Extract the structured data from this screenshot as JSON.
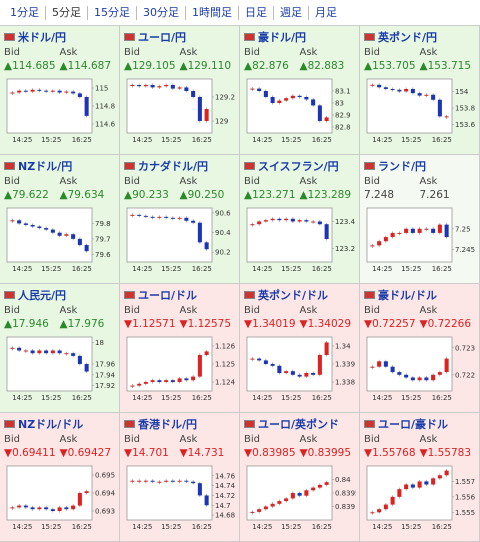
{
  "tabs": [
    "1分足",
    "5分足",
    "15分足",
    "30分足",
    "1時間足",
    "日足",
    "週足",
    "月足"
  ],
  "selected_tab": "5分足",
  "labels": {
    "bid": "Bid",
    "ask": "Ask"
  },
  "x_labels": [
    "14:25",
    "15:25",
    "16:25"
  ],
  "rates": [
    {
      "name": "米ドル/円",
      "bid": "▲114.685",
      "ask": "▲114.687",
      "chart": {
        "ylim": [
          114.5,
          115.1
        ],
        "yticks": [
          115,
          114.8,
          114.6
        ],
        "values": [
          114.95,
          114.97,
          114.96,
          114.98,
          114.97,
          114.96,
          114.97,
          114.95,
          114.96,
          114.94,
          114.9,
          114.69
        ]
      }
    },
    {
      "name": "ユーロ/円",
      "bid": "▲129.105",
      "ask": "▲129.110",
      "chart": {
        "ylim": [
          128.9,
          129.35
        ],
        "yticks": [
          129.2,
          129
        ],
        "values": [
          129.3,
          129.29,
          129.3,
          129.28,
          129.29,
          129.3,
          129.27,
          129.28,
          129.25,
          129.2,
          129.0,
          129.1
        ]
      }
    },
    {
      "name": "豪ドル/円",
      "bid": "▲82.876",
      "ask": "▲82.883",
      "chart": {
        "ylim": [
          82.75,
          83.2
        ],
        "yticks": [
          83.1,
          83,
          82.9,
          82.8
        ],
        "values": [
          83.12,
          83.1,
          83.05,
          83.0,
          83.02,
          83.04,
          83.06,
          83.05,
          83.03,
          82.98,
          82.85,
          82.88
        ]
      }
    },
    {
      "name": "英ポンド/円",
      "bid": "▲153.705",
      "ask": "▲153.715",
      "chart": {
        "ylim": [
          153.5,
          154.15
        ],
        "yticks": [
          154,
          153.8,
          153.6
        ],
        "values": [
          154.08,
          154.05,
          154.03,
          154.02,
          154.0,
          154.03,
          153.98,
          153.95,
          153.96,
          153.9,
          153.7,
          153.7
        ]
      }
    },
    {
      "name": "NZドル/円",
      "bid": "▲79.622",
      "ask": "▲79.634",
      "chart": {
        "ylim": [
          79.55,
          79.9
        ],
        "yticks": [
          79.8,
          79.7,
          79.6
        ],
        "values": [
          79.82,
          79.8,
          79.79,
          79.78,
          79.77,
          79.76,
          79.74,
          79.72,
          79.73,
          79.7,
          79.66,
          79.62
        ]
      }
    },
    {
      "name": "カナダドル/円",
      "bid": "▲90.233",
      "ask": "▲90.250",
      "chart": {
        "ylim": [
          90.1,
          90.65
        ],
        "yticks": [
          90.6,
          90.4,
          90.2
        ],
        "values": [
          90.58,
          90.57,
          90.56,
          90.55,
          90.56,
          90.55,
          90.54,
          90.55,
          90.52,
          90.5,
          90.3,
          90.23
        ]
      }
    },
    {
      "name": "スイスフラン/円",
      "bid": "▲123.271",
      "ask": "▲123.289",
      "chart": {
        "ylim": [
          123.1,
          123.5
        ],
        "yticks": [
          123.4,
          123.2
        ],
        "values": [
          123.38,
          123.4,
          123.41,
          123.42,
          123.41,
          123.42,
          123.4,
          123.41,
          123.4,
          123.4,
          123.38,
          123.27
        ]
      }
    },
    {
      "name": "ランド/円",
      "bid": "7.248",
      "ask": "7.261",
      "chart": {
        "ylim": [
          7.242,
          7.255
        ],
        "yticks": [
          7.25,
          7.245
        ],
        "values": [
          7.246,
          7.247,
          7.248,
          7.249,
          7.249,
          7.25,
          7.249,
          7.25,
          7.25,
          7.249,
          7.251,
          7.248
        ]
      }
    },
    {
      "name": "人民元/円",
      "bid": "▲17.946",
      "ask": "▲17.976",
      "chart": {
        "ylim": [
          17.91,
          18.01
        ],
        "yticks": [
          18,
          17.96,
          17.94,
          17.92
        ],
        "values": [
          17.99,
          17.985,
          17.985,
          17.98,
          17.985,
          17.98,
          17.985,
          17.98,
          17.98,
          17.975,
          17.96,
          17.946
        ]
      }
    },
    {
      "name": "ユーロ/ドル",
      "bid": "▼1.12571",
      "ask": "▼1.12575",
      "chart": {
        "ylim": [
          1.1235,
          1.1265
        ],
        "yticks": [
          1.126,
          1.125,
          1.124
        ],
        "values": [
          1.1238,
          1.1239,
          1.124,
          1.1241,
          1.124,
          1.1241,
          1.124,
          1.1242,
          1.1241,
          1.1243,
          1.1255,
          1.1257
        ]
      }
    },
    {
      "name": "英ポンド/ドル",
      "bid": "▼1.34019",
      "ask": "▼1.34029",
      "chart": {
        "ylim": [
          1.3375,
          1.3405
        ],
        "yticks": [
          1.34,
          1.339,
          1.338
        ],
        "values": [
          1.3393,
          1.3392,
          1.339,
          1.3389,
          1.3385,
          1.3386,
          1.3384,
          1.3383,
          1.3385,
          1.3384,
          1.3395,
          1.3402
        ]
      }
    },
    {
      "name": "豪ドル/ドル",
      "bid": "▼0.72257",
      "ask": "▼0.72266",
      "chart": {
        "ylim": [
          0.7214,
          0.7234
        ],
        "yticks": [
          0.723,
          0.722
        ],
        "values": [
          0.7223,
          0.7225,
          0.7223,
          0.7221,
          0.722,
          0.7219,
          0.7218,
          0.7219,
          0.7218,
          0.722,
          0.7221,
          0.7226
        ]
      }
    },
    {
      "name": "NZドル/ドル",
      "bid": "▼0.69411",
      "ask": "▼0.69427",
      "chart": {
        "ylim": [
          0.6925,
          0.6955
        ],
        "yticks": [
          0.695,
          0.694,
          0.693
        ],
        "values": [
          0.6932,
          0.6933,
          0.6932,
          0.6931,
          0.6932,
          0.6931,
          0.693,
          0.6932,
          0.6931,
          0.6933,
          0.694,
          0.6941
        ]
      }
    },
    {
      "name": "香港ドル/円",
      "bid": "▼14.701",
      "ask": "▼14.731",
      "chart": {
        "ylim": [
          14.67,
          14.78
        ],
        "yticks": [
          14.76,
          14.74,
          14.72,
          14.7,
          14.68
        ],
        "values": [
          14.75,
          14.75,
          14.75,
          14.748,
          14.748,
          14.75,
          14.748,
          14.75,
          14.748,
          14.745,
          14.72,
          14.7
        ]
      }
    },
    {
      "name": "ユーロ/英ポンド",
      "bid": "▼0.83985",
      "ask": "▼0.83995",
      "chart": {
        "ylim": [
          0.8385,
          0.8405
        ],
        "yticks": [
          0.84,
          0.8395,
          0.839
        ],
        "values": [
          0.8388,
          0.8389,
          0.839,
          0.8391,
          0.8392,
          0.8393,
          0.8395,
          0.8394,
          0.8396,
          0.8397,
          0.8398,
          0.8399
        ]
      }
    },
    {
      "name": "ユーロ/豪ドル",
      "bid": "▼1.55768",
      "ask": "▼1.55783",
      "chart": {
        "ylim": [
          1.5545,
          1.558
        ],
        "yticks": [
          1.557,
          1.556,
          1.555
        ],
        "values": [
          1.555,
          1.5552,
          1.5555,
          1.556,
          1.5565,
          1.5568,
          1.5566,
          1.557,
          1.5568,
          1.5572,
          1.5574,
          1.5577
        ]
      }
    }
  ]
}
